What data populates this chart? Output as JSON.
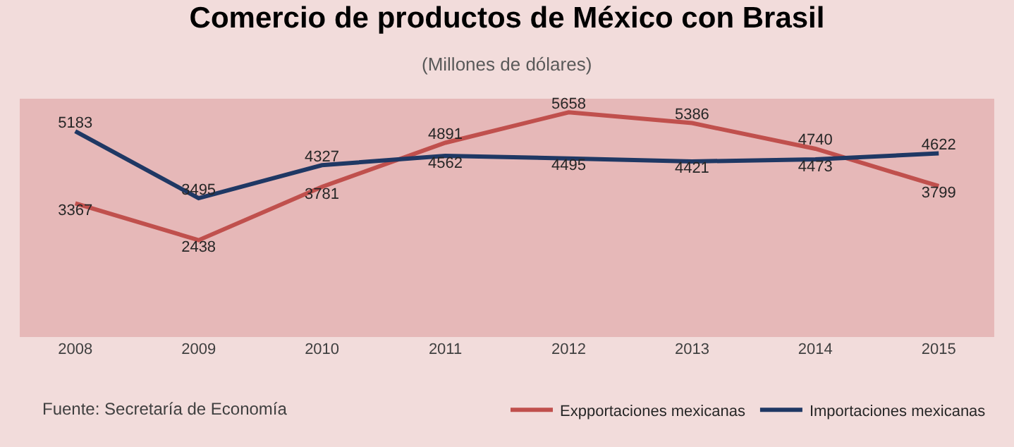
{
  "chart_data": {
    "type": "line",
    "title": "Comercio de productos de México con Brasil",
    "subtitle": "(Millones de dólares)",
    "categories": [
      "2008",
      "2009",
      "2010",
      "2011",
      "2012",
      "2013",
      "2014",
      "2015"
    ],
    "series": [
      {
        "name": "Expportaciones mexicanas",
        "color": "#c0504d",
        "values": [
          3367,
          2438,
          3781,
          4891,
          5658,
          5386,
          4740,
          3799
        ]
      },
      {
        "name": "Importaciones mexicanas",
        "color": "#1f3864",
        "values": [
          5183,
          3495,
          4327,
          4562,
          4495,
          4421,
          4473,
          4622
        ]
      }
    ],
    "ylim": [
      0,
      6000
    ],
    "data_labels": true,
    "grid": false,
    "legend": "bottom right",
    "marker": "none",
    "line_style": "solid",
    "tick_labels": "x",
    "annotations": [
      "Fuente: Secretaría de Economía"
    ]
  }
}
